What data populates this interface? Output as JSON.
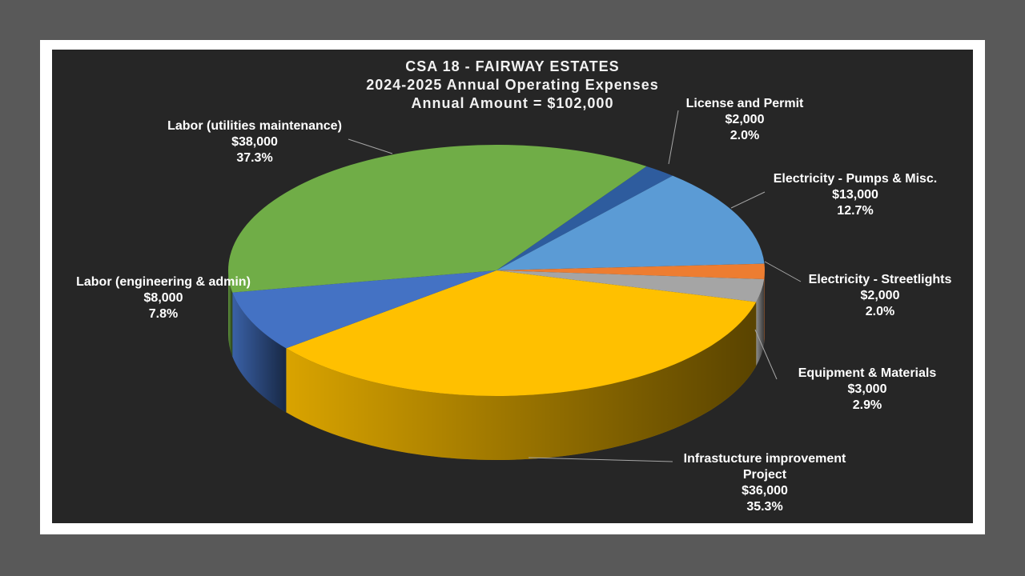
{
  "chart_data": {
    "type": "pie3d",
    "title": [
      "CSA 18 - FAIRWAY ESTATES",
      "2024-2025 Annual Operating Expenses",
      "Annual Amount = $102,000"
    ],
    "categories": [
      "License and Permit",
      "Electricity - Pumps & Misc.",
      "Electricity - Streetlights",
      "Equipment & Materials",
      "Infrastucture improvement Project",
      "Labor (engineering & admin)",
      "Labor (utilities maintenance)"
    ],
    "values": [
      2000,
      13000,
      2000,
      3000,
      36000,
      8000,
      38000
    ],
    "value_labels": [
      "$2,000",
      "$13,000",
      "$2,000",
      "$3,000",
      "$36,000",
      "$8,000",
      "$38,000"
    ],
    "percent_labels": [
      "2.0%",
      "12.7%",
      "2.0%",
      "2.9%",
      "35.3%",
      "7.8%",
      "37.3%"
    ],
    "colors": [
      "#2e5c9e",
      "#5b9bd5",
      "#ed7d31",
      "#a5a5a5",
      "#ffc000",
      "#4472c4",
      "#70ad47"
    ]
  }
}
